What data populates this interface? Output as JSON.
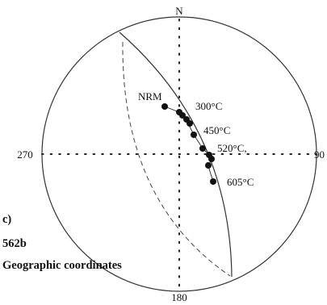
{
  "panel": {
    "letter": "c)",
    "specimen": "562b",
    "coordinates": "Geographic coordinates"
  },
  "stereonet": {
    "north_label": "N",
    "east_label": "90",
    "south_label": "180",
    "west_label": "270",
    "step_labels": {
      "nrm": "NRM",
      "t300": "300°C",
      "t450": "450°C",
      "t520": "520°C,",
      "t605": "605°C"
    }
  },
  "colors": {
    "ink": "#111111",
    "net_line": "#333333",
    "dashed_circle": "#444444"
  }
}
